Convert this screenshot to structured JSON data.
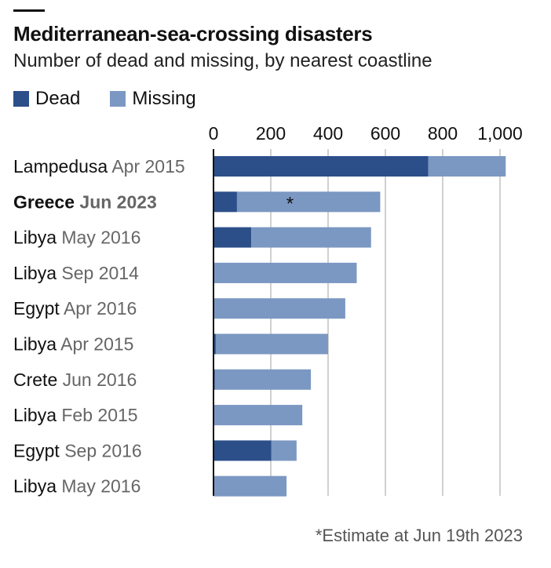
{
  "header": {
    "title": "Mediterranean-sea-crossing disasters",
    "subtitle": "Number of dead and missing, by nearest coastline"
  },
  "legend": {
    "dead_label": "Dead",
    "missing_label": "Missing"
  },
  "colors": {
    "dead": "#2c4f8a",
    "missing": "#7b98c2",
    "grid": "#d0d0d0",
    "axis": "#111111",
    "place": "#111111",
    "date": "#666666"
  },
  "footnote": "*Estimate at Jun 19th 2023",
  "chart_data": {
    "type": "bar",
    "orientation": "horizontal",
    "stacked": true,
    "xlim": [
      0,
      1000
    ],
    "xticks": [
      0,
      200,
      400,
      600,
      800,
      1000
    ],
    "xtick_labels": [
      "0",
      "200",
      "400",
      "600",
      "800",
      "1,000"
    ],
    "grid": true,
    "legend_position": "top-left",
    "categories": [
      {
        "place": "Lampedusa",
        "date": "Apr 2015",
        "highlight": false
      },
      {
        "place": "Greece",
        "date": "Jun 2023",
        "highlight": true
      },
      {
        "place": "Libya",
        "date": "May 2016",
        "highlight": false
      },
      {
        "place": "Libya",
        "date": "Sep 2014",
        "highlight": false
      },
      {
        "place": "Egypt",
        "date": "Apr 2016",
        "highlight": false
      },
      {
        "place": "Libya",
        "date": "Apr 2015",
        "highlight": false
      },
      {
        "place": "Crete",
        "date": "Jun 2016",
        "highlight": false
      },
      {
        "place": "Libya",
        "date": "Feb 2015",
        "highlight": false
      },
      {
        "place": "Egypt",
        "date": "Sep 2016",
        "highlight": false
      },
      {
        "place": "Libya",
        "date": "May 2016",
        "highlight": false
      }
    ],
    "series": [
      {
        "name": "Dead",
        "values": [
          750,
          82,
          132,
          0,
          0,
          8,
          5,
          0,
          202,
          0
        ]
      },
      {
        "name": "Missing",
        "values": [
          270,
          500,
          418,
          500,
          460,
          392,
          335,
          310,
          88,
          255
        ]
      }
    ],
    "annotations": [
      {
        "category_index": 1,
        "text": "*"
      }
    ]
  }
}
